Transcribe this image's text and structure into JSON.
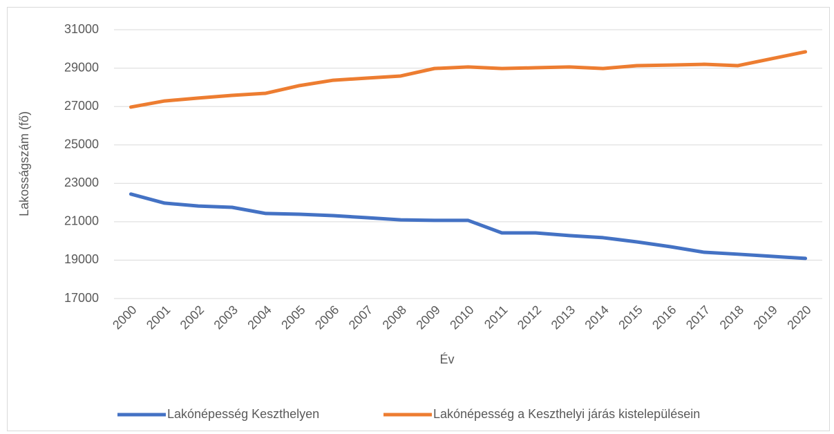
{
  "chart_data": {
    "type": "line",
    "categories": [
      "2000",
      "2001",
      "2002",
      "2003",
      "2004",
      "2005",
      "2006",
      "2007",
      "2008",
      "2009",
      "2010",
      "2011",
      "2012",
      "2013",
      "2014",
      "2015",
      "2016",
      "2017",
      "2018",
      "2019",
      "2020"
    ],
    "series": [
      {
        "name": "Lakónépesség Keszthelyen",
        "color": "#4472c4",
        "values": [
          22440,
          21970,
          21820,
          21750,
          21430,
          21390,
          21320,
          21210,
          21100,
          21070,
          21070,
          20420,
          20420,
          20280,
          20170,
          19950,
          19700,
          19410,
          19310,
          19200,
          19090
        ]
      },
      {
        "name": "Lakónépesség a Keszthelyi járás kistelepülésein",
        "color": "#ed7d31",
        "values": [
          26970,
          27290,
          27440,
          27580,
          27690,
          28090,
          28370,
          28480,
          28590,
          28980,
          29060,
          28980,
          29020,
          29060,
          28980,
          29130,
          29160,
          29200,
          29130,
          29490,
          29850
        ]
      }
    ],
    "x_label": "Év",
    "y_label": "Lakosságszám (fő)",
    "ylim": [
      17000,
      31000
    ],
    "yticks": [
      17000,
      19000,
      21000,
      23000,
      25000,
      27000,
      29000,
      31000
    ],
    "grid": true,
    "legend": "bottom"
  }
}
